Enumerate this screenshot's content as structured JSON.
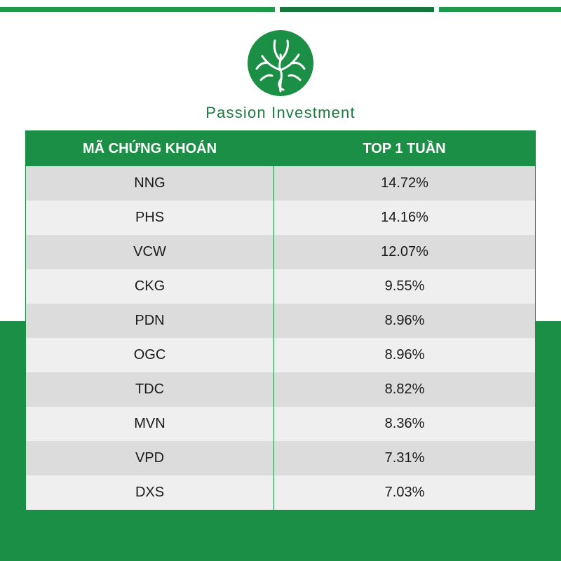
{
  "brand": {
    "name": "Passion Investment",
    "colors": {
      "primary": "#1b8f45",
      "dark": "#15773d"
    },
    "logo_icon": "tree-logo-icon"
  },
  "table": {
    "headers": {
      "code": "MÃ CHỨNG KHOÁN",
      "top": "TOP 1 TUẦN"
    },
    "rows": [
      {
        "code": "NNG",
        "value": "14.72%"
      },
      {
        "code": "PHS",
        "value": "14.16%"
      },
      {
        "code": "VCW",
        "value": "12.07%"
      },
      {
        "code": "CKG",
        "value": "9.55%"
      },
      {
        "code": "PDN",
        "value": "8.96%"
      },
      {
        "code": "OGC",
        "value": "8.96%"
      },
      {
        "code": "TDC",
        "value": "8.82%"
      },
      {
        "code": "MVN",
        "value": "8.36%"
      },
      {
        "code": "VPD",
        "value": "7.31%"
      },
      {
        "code": "DXS",
        "value": "7.03%"
      }
    ]
  }
}
